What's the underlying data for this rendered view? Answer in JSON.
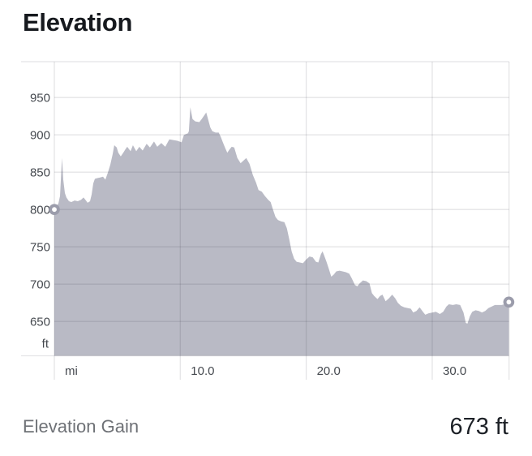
{
  "title": "Elevation",
  "footer": {
    "label": "Elevation Gain",
    "value": "673 ft"
  },
  "colors": {
    "area_fill": "#b9bac5",
    "gridline": "rgba(45,45,65,0.13)",
    "marker_ring": "#9b9cab",
    "marker_center": "#ffffff",
    "tick_text": "#45494f",
    "title_text": "#16191e",
    "footer_label_text": "#6e7176",
    "footer_value_text": "#1d2127"
  },
  "chart_data": {
    "type": "area",
    "title": "Elevation",
    "xlabel": "mi",
    "ylabel": "ft",
    "xlim": [
      0,
      36.1
    ],
    "ylim": [
      604,
      998
    ],
    "grid": true,
    "y_ticks": [
      950,
      900,
      850,
      800,
      750,
      700,
      650
    ],
    "y_unit_label": "ft",
    "x_ticks": [
      {
        "mi": 0,
        "label": "mi"
      },
      {
        "mi": 10,
        "label": "10.0"
      },
      {
        "mi": 20,
        "label": "20.0"
      },
      {
        "mi": 30,
        "label": "30.0"
      }
    ],
    "start_marker": {
      "mi": 0,
      "ft": 800
    },
    "end_marker": {
      "mi": 36.08,
      "ft": 676
    },
    "points": [
      [
        0,
        800
      ],
      [
        0.13,
        803
      ],
      [
        0.32,
        808
      ],
      [
        0.45,
        818
      ],
      [
        0.55,
        850
      ],
      [
        0.61,
        869
      ],
      [
        0.71,
        840
      ],
      [
        0.84,
        822
      ],
      [
        0.96,
        816
      ],
      [
        1.16,
        811
      ],
      [
        1.35,
        810
      ],
      [
        1.61,
        812
      ],
      [
        1.86,
        811
      ],
      [
        2.12,
        813
      ],
      [
        2.32,
        816
      ],
      [
        2.51,
        812
      ],
      [
        2.64,
        809
      ],
      [
        2.83,
        811
      ],
      [
        2.96,
        820
      ],
      [
        3.09,
        835
      ],
      [
        3.22,
        841
      ],
      [
        3.41,
        842
      ],
      [
        3.67,
        843
      ],
      [
        3.86,
        844
      ],
      [
        4.05,
        840
      ],
      [
        4.24,
        849
      ],
      [
        4.44,
        860
      ],
      [
        4.63,
        874
      ],
      [
        4.76,
        886
      ],
      [
        4.95,
        883
      ],
      [
        5.08,
        876
      ],
      [
        5.27,
        871
      ],
      [
        5.47,
        876
      ],
      [
        5.66,
        881
      ],
      [
        5.79,
        884
      ],
      [
        6.05,
        878
      ],
      [
        6.24,
        886
      ],
      [
        6.5,
        878
      ],
      [
        6.75,
        884
      ],
      [
        7.01,
        879
      ],
      [
        7.33,
        888
      ],
      [
        7.59,
        883
      ],
      [
        7.91,
        891
      ],
      [
        8.17,
        884
      ],
      [
        8.49,
        889
      ],
      [
        8.81,
        884
      ],
      [
        9.13,
        894
      ],
      [
        9.45,
        893
      ],
      [
        9.77,
        892
      ],
      [
        10.1,
        890
      ],
      [
        10.29,
        900
      ],
      [
        10.61,
        902
      ],
      [
        10.68,
        905
      ],
      [
        10.8,
        937
      ],
      [
        10.97,
        921
      ],
      [
        11.19,
        918
      ],
      [
        11.51,
        917
      ],
      [
        11.7,
        921
      ],
      [
        11.9,
        926
      ],
      [
        12.06,
        930
      ],
      [
        12.22,
        920
      ],
      [
        12.38,
        910
      ],
      [
        12.54,
        905
      ],
      [
        12.8,
        903
      ],
      [
        13.05,
        903
      ],
      [
        13.22,
        897
      ],
      [
        13.38,
        890
      ],
      [
        13.57,
        882
      ],
      [
        13.73,
        876
      ],
      [
        13.89,
        880
      ],
      [
        14.08,
        884
      ],
      [
        14.28,
        883
      ],
      [
        14.53,
        869
      ],
      [
        14.79,
        862
      ],
      [
        14.98,
        865
      ],
      [
        15.24,
        869
      ],
      [
        15.5,
        861
      ],
      [
        15.76,
        846
      ],
      [
        16.01,
        836
      ],
      [
        16.21,
        826
      ],
      [
        16.46,
        824
      ],
      [
        16.72,
        818
      ],
      [
        16.98,
        813
      ],
      [
        17.17,
        810
      ],
      [
        17.36,
        800
      ],
      [
        17.56,
        790
      ],
      [
        17.75,
        786
      ],
      [
        18.01,
        784
      ],
      [
        18.26,
        783
      ],
      [
        18.46,
        775
      ],
      [
        18.65,
        760
      ],
      [
        18.84,
        744
      ],
      [
        19.04,
        734
      ],
      [
        19.23,
        730
      ],
      [
        19.49,
        729
      ],
      [
        19.74,
        728
      ],
      [
        20.0,
        733
      ],
      [
        20.26,
        737
      ],
      [
        20.51,
        736
      ],
      [
        20.77,
        730
      ],
      [
        20.96,
        729
      ],
      [
        21.16,
        740
      ],
      [
        21.29,
        744
      ],
      [
        21.41,
        739
      ],
      [
        21.61,
        730
      ],
      [
        21.8,
        720
      ],
      [
        21.99,
        710
      ],
      [
        22.19,
        713
      ],
      [
        22.38,
        717
      ],
      [
        22.64,
        718
      ],
      [
        22.89,
        717
      ],
      [
        23.15,
        716
      ],
      [
        23.41,
        714
      ],
      [
        23.6,
        708
      ],
      [
        23.86,
        699
      ],
      [
        24.05,
        697
      ],
      [
        24.24,
        701
      ],
      [
        24.5,
        705
      ],
      [
        24.76,
        704
      ],
      [
        25.02,
        701
      ],
      [
        25.21,
        688
      ],
      [
        25.4,
        684
      ],
      [
        25.66,
        680
      ],
      [
        25.85,
        684
      ],
      [
        26.05,
        686
      ],
      [
        26.3,
        677
      ],
      [
        26.56,
        681
      ],
      [
        26.82,
        686
      ],
      [
        27.07,
        681
      ],
      [
        27.27,
        675
      ],
      [
        27.52,
        671
      ],
      [
        27.78,
        669
      ],
      [
        28.04,
        668
      ],
      [
        28.3,
        667
      ],
      [
        28.49,
        662
      ],
      [
        28.75,
        664
      ],
      [
        29.0,
        669
      ],
      [
        29.26,
        663
      ],
      [
        29.45,
        659
      ],
      [
        29.71,
        661
      ],
      [
        30.03,
        662
      ],
      [
        30.29,
        663
      ],
      [
        30.61,
        660
      ],
      [
        30.87,
        663
      ],
      [
        31.13,
        670
      ],
      [
        31.32,
        673
      ],
      [
        31.64,
        672
      ],
      [
        31.9,
        673
      ],
      [
        32.22,
        672
      ],
      [
        32.48,
        662
      ],
      [
        32.67,
        648
      ],
      [
        32.8,
        647
      ],
      [
        32.99,
        657
      ],
      [
        33.18,
        663
      ],
      [
        33.44,
        665
      ],
      [
        33.7,
        664
      ],
      [
        33.95,
        662
      ],
      [
        34.21,
        664
      ],
      [
        34.47,
        668
      ],
      [
        34.73,
        670
      ],
      [
        34.98,
        672
      ],
      [
        35.24,
        672
      ],
      [
        35.5,
        672
      ],
      [
        35.76,
        673
      ],
      [
        35.95,
        674
      ],
      [
        36.08,
        676
      ]
    ]
  }
}
